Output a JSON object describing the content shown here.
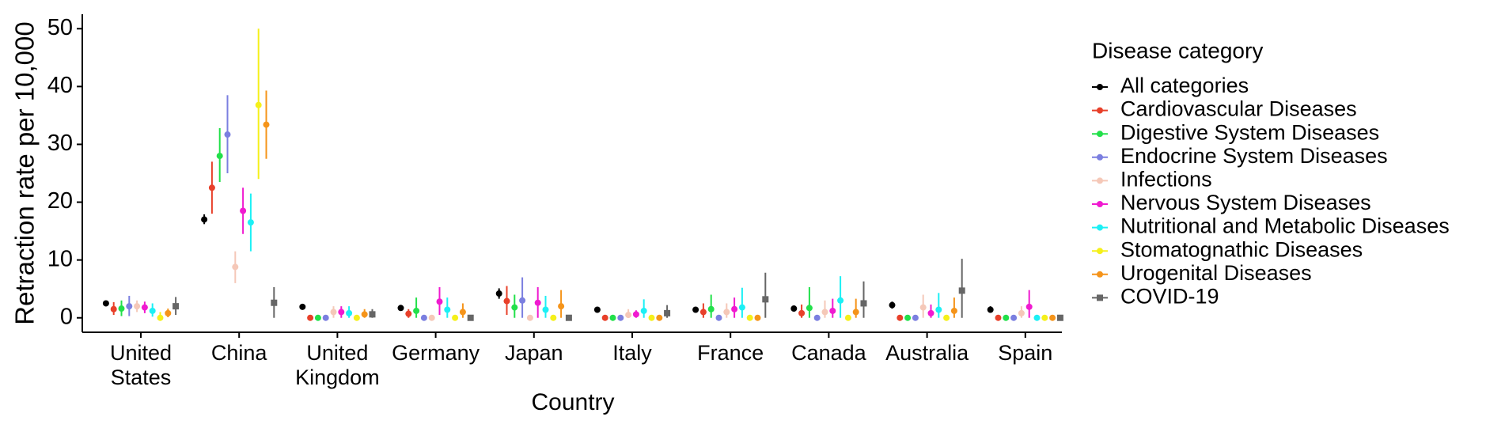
{
  "chart_data": {
    "type": "pointrange",
    "x_label": "Country",
    "y_label": "Retraction rate per 10,000",
    "legend_title": "Disease category",
    "legend_position": "right",
    "categories": [
      "United States",
      "China",
      "United Kingdom",
      "Germany",
      "Japan",
      "Italy",
      "France",
      "Canada",
      "Australia",
      "Spain"
    ],
    "ylim": [
      -2.5,
      52.5
    ],
    "yticks": [
      0,
      10,
      20,
      30,
      40,
      50
    ],
    "grid": false,
    "series": [
      {
        "name": "All categories",
        "color": "#000000",
        "marker": "circle",
        "values": [
          2.5,
          17,
          1.9,
          1.7,
          4.2,
          1.4,
          1.4,
          1.6,
          2.2,
          1.4
        ],
        "lower": [
          2.2,
          16.2,
          1.6,
          1.3,
          3.3,
          1.1,
          1,
          1.2,
          1.6,
          0.9
        ],
        "upper": [
          2.8,
          17.9,
          2.2,
          2.1,
          5.1,
          1.8,
          1.8,
          2.1,
          2.8,
          2
        ]
      },
      {
        "name": "Cardiovascular Diseases",
        "color": "#e8402a",
        "marker": "circle",
        "values": [
          1.5,
          22.5,
          0,
          0.7,
          2.9,
          0,
          1,
          0.8,
          0,
          0
        ],
        "lower": [
          0.5,
          18,
          0,
          0,
          0.5,
          0,
          0,
          0,
          0,
          0
        ],
        "upper": [
          2.7,
          27,
          0,
          1.5,
          5.5,
          0,
          2.5,
          2.3,
          0,
          0
        ]
      },
      {
        "name": "Digestive System Diseases",
        "color": "#22e04a",
        "marker": "circle",
        "values": [
          1.6,
          28,
          0,
          1.2,
          1.8,
          0,
          1.5,
          1.7,
          0,
          0
        ],
        "lower": [
          0.3,
          23.5,
          0,
          0,
          0,
          0,
          0,
          0,
          0,
          0
        ],
        "upper": [
          3,
          32.8,
          0,
          3.5,
          4,
          0,
          4,
          5.3,
          0,
          0
        ]
      },
      {
        "name": "Endocrine System Diseases",
        "color": "#7b7fe0",
        "marker": "circle",
        "values": [
          2,
          31.7,
          0,
          0,
          3,
          0,
          0,
          0,
          0,
          0
        ],
        "lower": [
          0.3,
          25,
          0,
          0,
          0,
          0,
          0,
          0,
          0,
          0
        ],
        "upper": [
          3.8,
          38.5,
          0,
          0,
          7,
          0,
          0,
          0,
          0,
          0
        ]
      },
      {
        "name": "Infections",
        "color": "#f5c8b8",
        "marker": "circle",
        "values": [
          2,
          8.8,
          1,
          0,
          0,
          0.5,
          1,
          1,
          1.8,
          0.8
        ],
        "lower": [
          1,
          6,
          0,
          0,
          0,
          0,
          0,
          0,
          0,
          0
        ],
        "upper": [
          3,
          11.5,
          2,
          0,
          0,
          1.5,
          2.5,
          3,
          4,
          2
        ]
      },
      {
        "name": "Nervous System Diseases",
        "color": "#f01ad0",
        "marker": "circle",
        "values": [
          1.8,
          18.5,
          1,
          2.8,
          2.6,
          0.6,
          1.5,
          1.2,
          0.8,
          1.9
        ],
        "lower": [
          0.8,
          14.5,
          0,
          0.5,
          0,
          0,
          0,
          0,
          0,
          0
        ],
        "upper": [
          2.8,
          22.5,
          2,
          5.3,
          5.3,
          1.3,
          3.5,
          3.3,
          2.3,
          4.8
        ]
      },
      {
        "name": "Nutritional and Metabolic Diseases",
        "color": "#1cf0f5",
        "marker": "circle",
        "values": [
          1.2,
          16.5,
          0.8,
          1.4,
          1.4,
          1.2,
          1.8,
          3,
          1.4,
          0
        ],
        "lower": [
          0.2,
          11.5,
          0,
          0,
          0,
          0,
          0,
          0,
          0,
          0
        ],
        "upper": [
          2.5,
          21.5,
          2,
          3.5,
          3.8,
          3.2,
          5.2,
          7.2,
          4.3,
          0
        ]
      },
      {
        "name": "Stomatognathic Diseases",
        "color": "#f5f01a",
        "marker": "circle",
        "values": [
          0,
          36.8,
          0,
          0,
          0,
          0,
          0,
          0,
          0,
          0
        ],
        "lower": [
          0,
          24,
          0,
          0,
          0,
          0,
          0,
          0,
          0,
          0
        ],
        "upper": [
          1,
          50,
          0,
          0,
          0,
          0,
          0,
          0,
          0,
          0
        ]
      },
      {
        "name": "Urogenital Diseases",
        "color": "#f5941a",
        "marker": "circle",
        "values": [
          0.8,
          33.4,
          0.6,
          1,
          2,
          0,
          0,
          1,
          1.2,
          0
        ],
        "lower": [
          0.1,
          27.5,
          0,
          0,
          0,
          0,
          0,
          0,
          0,
          0
        ],
        "upper": [
          1.6,
          39.3,
          1.5,
          2.5,
          4.8,
          0,
          0,
          3.3,
          3.5,
          0
        ]
      },
      {
        "name": "COVID-19",
        "color": "#666666",
        "marker": "square",
        "values": [
          2,
          2.6,
          0.6,
          0,
          0,
          0.8,
          3.2,
          2.5,
          4.7,
          0
        ],
        "lower": [
          0.5,
          0,
          0,
          0,
          0,
          0,
          0,
          0,
          0,
          0
        ],
        "upper": [
          3.6,
          5.3,
          1.5,
          0,
          0,
          2.2,
          7.8,
          6.3,
          10.2,
          0
        ]
      }
    ]
  }
}
